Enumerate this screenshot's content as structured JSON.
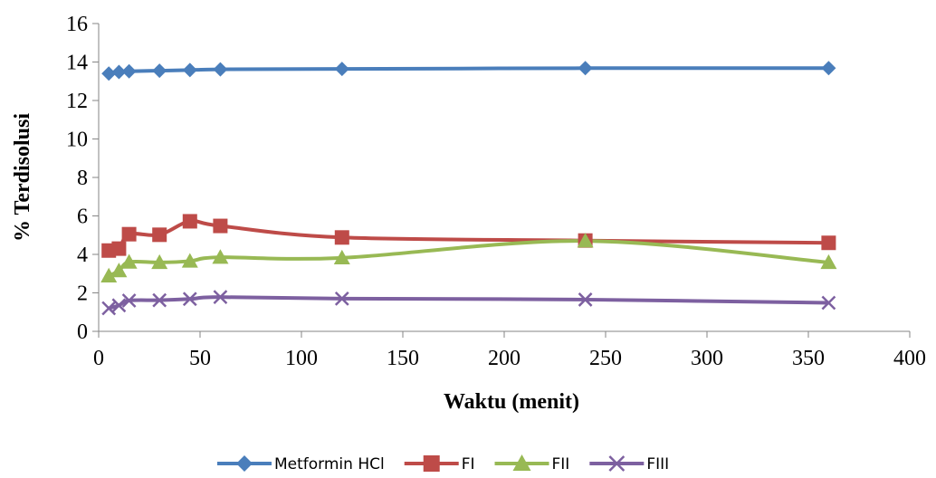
{
  "chart_data": {
    "type": "line",
    "title": "",
    "xlabel": "Waktu (menit)",
    "ylabel": "% Terdisolusi",
    "xlim": [
      0,
      400
    ],
    "ylim": [
      0,
      16
    ],
    "xticks": [
      0,
      50,
      100,
      150,
      200,
      250,
      300,
      350,
      400
    ],
    "yticks": [
      0,
      2,
      4,
      6,
      8,
      10,
      12,
      14,
      16
    ],
    "grid": false,
    "legend_position": "bottom",
    "smooth": true,
    "series": [
      {
        "name": "Metformin HCl",
        "color": "#4A7EBB",
        "marker": "diamond",
        "x": [
          5,
          10,
          15,
          30,
          45,
          60,
          120,
          240,
          360
        ],
        "y": [
          13.4,
          13.48,
          13.52,
          13.55,
          13.58,
          13.62,
          13.64,
          13.68,
          13.68
        ]
      },
      {
        "name": "FI",
        "color": "#BE4B48",
        "marker": "square",
        "x": [
          5,
          10,
          15,
          30,
          45,
          60,
          120,
          240,
          360
        ],
        "y": [
          4.2,
          4.3,
          5.05,
          5.02,
          5.72,
          5.48,
          4.88,
          4.72,
          4.6
        ]
      },
      {
        "name": "FII",
        "color": "#98B954",
        "marker": "triangle",
        "x": [
          5,
          10,
          15,
          30,
          45,
          60,
          120,
          240,
          360
        ],
        "y": [
          2.88,
          3.15,
          3.6,
          3.58,
          3.65,
          3.85,
          3.82,
          4.7,
          3.58
        ]
      },
      {
        "name": "FIII",
        "color": "#7D60A0",
        "marker": "x",
        "x": [
          5,
          10,
          15,
          30,
          45,
          60,
          120,
          240,
          360
        ],
        "y": [
          1.2,
          1.35,
          1.6,
          1.62,
          1.68,
          1.78,
          1.7,
          1.65,
          1.48
        ]
      }
    ]
  }
}
